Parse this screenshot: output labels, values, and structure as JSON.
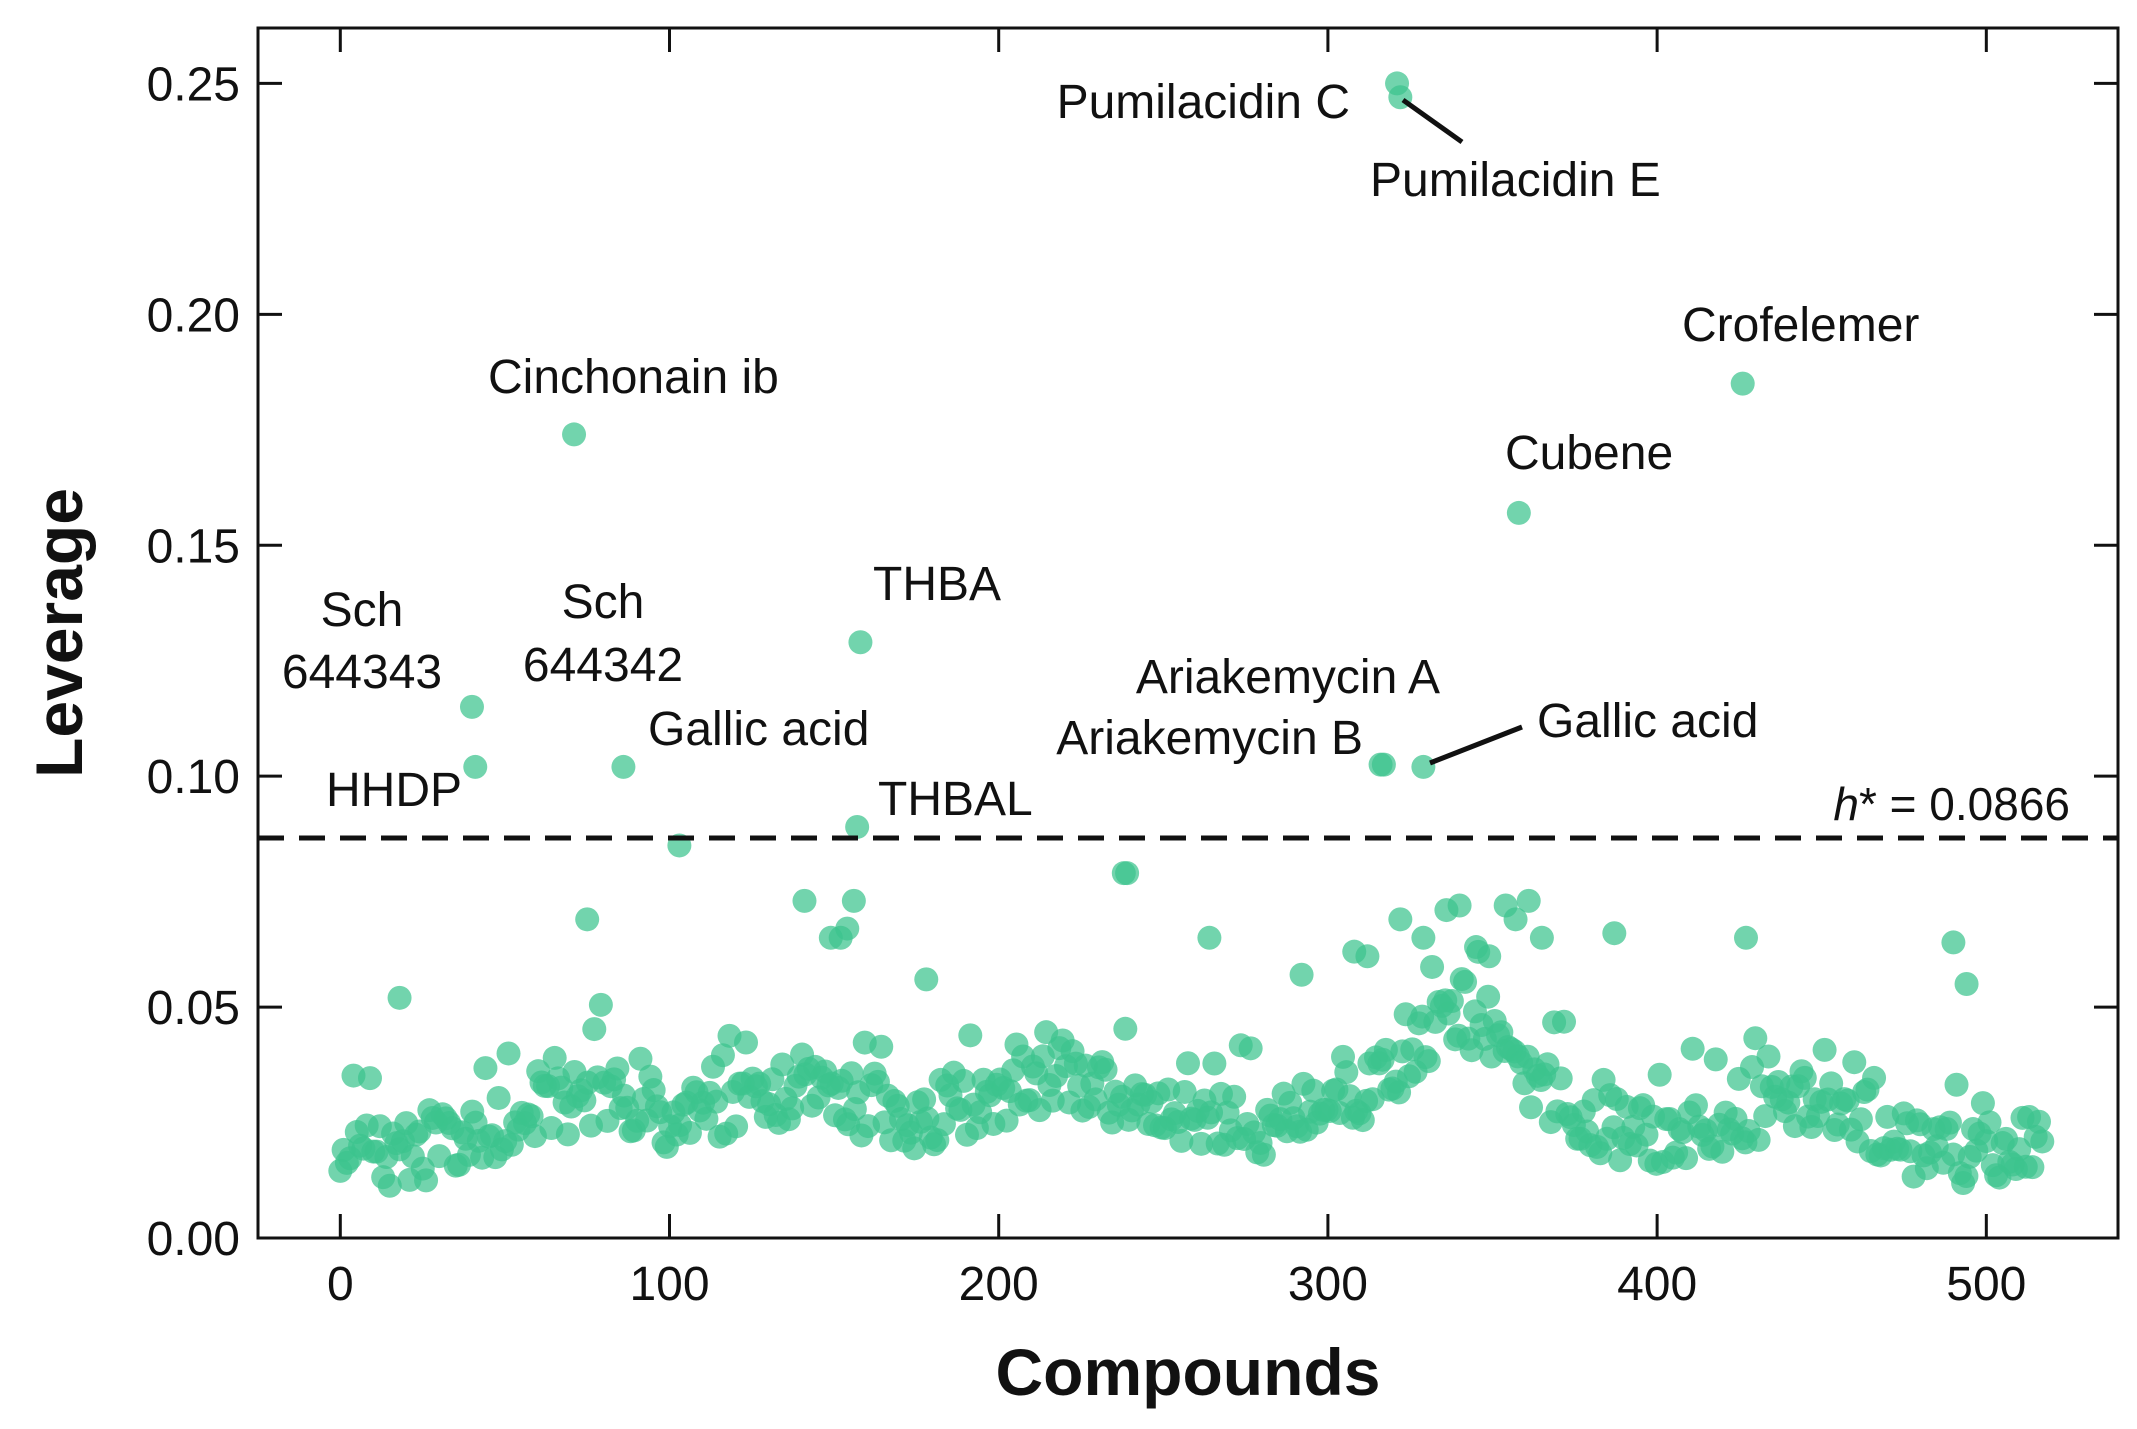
{
  "chart_data": {
    "type": "scatter",
    "title": "",
    "xlabel": "Compounds",
    "ylabel": "Leverage",
    "xlim": [
      -25,
      540
    ],
    "ylim": [
      0,
      0.262
    ],
    "xticks": [
      0,
      100,
      200,
      300,
      400,
      500
    ],
    "xtick_labels": [
      "0",
      "100",
      "200",
      "300",
      "400",
      "500"
    ],
    "yticks": [
      0,
      0.05,
      0.1,
      0.15,
      0.2,
      0.25
    ],
    "ytick_labels": [
      "0.00",
      "0.05",
      "0.10",
      "0.15",
      "0.20",
      "0.25"
    ],
    "grid": false,
    "legend": "none",
    "marker_color": "#3cc48d",
    "marker_opacity": 0.72,
    "threshold": {
      "value": 0.0866,
      "label_symbol": "h",
      "label_star": "*",
      "label_rest": " = 0.0866",
      "style": "dashed"
    },
    "labeled_points": [
      {
        "name": "Pumilacidin C",
        "x": 321,
        "y": 0.25
      },
      {
        "name": "Pumilacidin E",
        "x": 322,
        "y": 0.247
      },
      {
        "name": "Crofelemer",
        "x": 426,
        "y": 0.185
      },
      {
        "name": "Cinchonain ib",
        "x": 71,
        "y": 0.174
      },
      {
        "name": "Cubene",
        "x": 358,
        "y": 0.157
      },
      {
        "name": "THBA",
        "x": 158,
        "y": 0.129
      },
      {
        "name": "Sch 644343",
        "x": 40,
        "y": 0.115
      },
      {
        "name": "Sch 644342",
        "x": 86,
        "y": 0.102
      },
      {
        "name": "HHDP",
        "x": 41,
        "y": 0.102
      },
      {
        "name": "Gallic acid",
        "x": 103,
        "y": 0.085
      },
      {
        "name": "THBAL",
        "x": 157,
        "y": 0.089
      },
      {
        "name": "Ariakemycin A",
        "x": 316,
        "y": 0.1025
      },
      {
        "name": "Ariakemycin B",
        "x": 317,
        "y": 0.1025
      },
      {
        "name": "Gallic acid",
        "x": 329,
        "y": 0.102
      }
    ],
    "extra_points": [
      {
        "x": 238,
        "y": 0.079
      },
      {
        "x": 239,
        "y": 0.079
      },
      {
        "x": 75,
        "y": 0.069
      },
      {
        "x": 141,
        "y": 0.073
      },
      {
        "x": 156,
        "y": 0.073
      },
      {
        "x": 149,
        "y": 0.065
      },
      {
        "x": 154,
        "y": 0.067
      },
      {
        "x": 152,
        "y": 0.065
      },
      {
        "x": 178,
        "y": 0.056
      },
      {
        "x": 264,
        "y": 0.065
      },
      {
        "x": 18,
        "y": 0.052
      },
      {
        "x": 322,
        "y": 0.069
      },
      {
        "x": 336,
        "y": 0.071
      },
      {
        "x": 340,
        "y": 0.072
      },
      {
        "x": 354,
        "y": 0.072
      },
      {
        "x": 361,
        "y": 0.073
      },
      {
        "x": 357,
        "y": 0.069
      },
      {
        "x": 365,
        "y": 0.065
      },
      {
        "x": 387,
        "y": 0.066
      },
      {
        "x": 427,
        "y": 0.065
      },
      {
        "x": 490,
        "y": 0.064
      },
      {
        "x": 494,
        "y": 0.055
      },
      {
        "x": 292,
        "y": 0.057
      },
      {
        "x": 308,
        "y": 0.062
      },
      {
        "x": 312,
        "y": 0.061
      },
      {
        "x": 329,
        "y": 0.065
      },
      {
        "x": 345,
        "y": 0.063
      },
      {
        "x": 349,
        "y": 0.061
      }
    ],
    "series": [
      {
        "name": "Compounds",
        "generated": true,
        "count": 517,
        "baseline_profile": {
          "x": [
            0,
            20,
            40,
            60,
            80,
            100,
            120,
            140,
            160,
            180,
            200,
            220,
            240,
            260,
            280,
            300,
            320,
            340,
            360,
            380,
            400,
            420,
            440,
            460,
            480,
            500,
            517
          ],
          "y": [
            0.018,
            0.018,
            0.022,
            0.026,
            0.032,
            0.025,
            0.028,
            0.032,
            0.028,
            0.025,
            0.03,
            0.036,
            0.028,
            0.024,
            0.024,
            0.028,
            0.035,
            0.05,
            0.034,
            0.025,
            0.022,
            0.024,
            0.03,
            0.028,
            0.018,
            0.018,
            0.02
          ]
        },
        "spread": 0.007
      }
    ]
  }
}
